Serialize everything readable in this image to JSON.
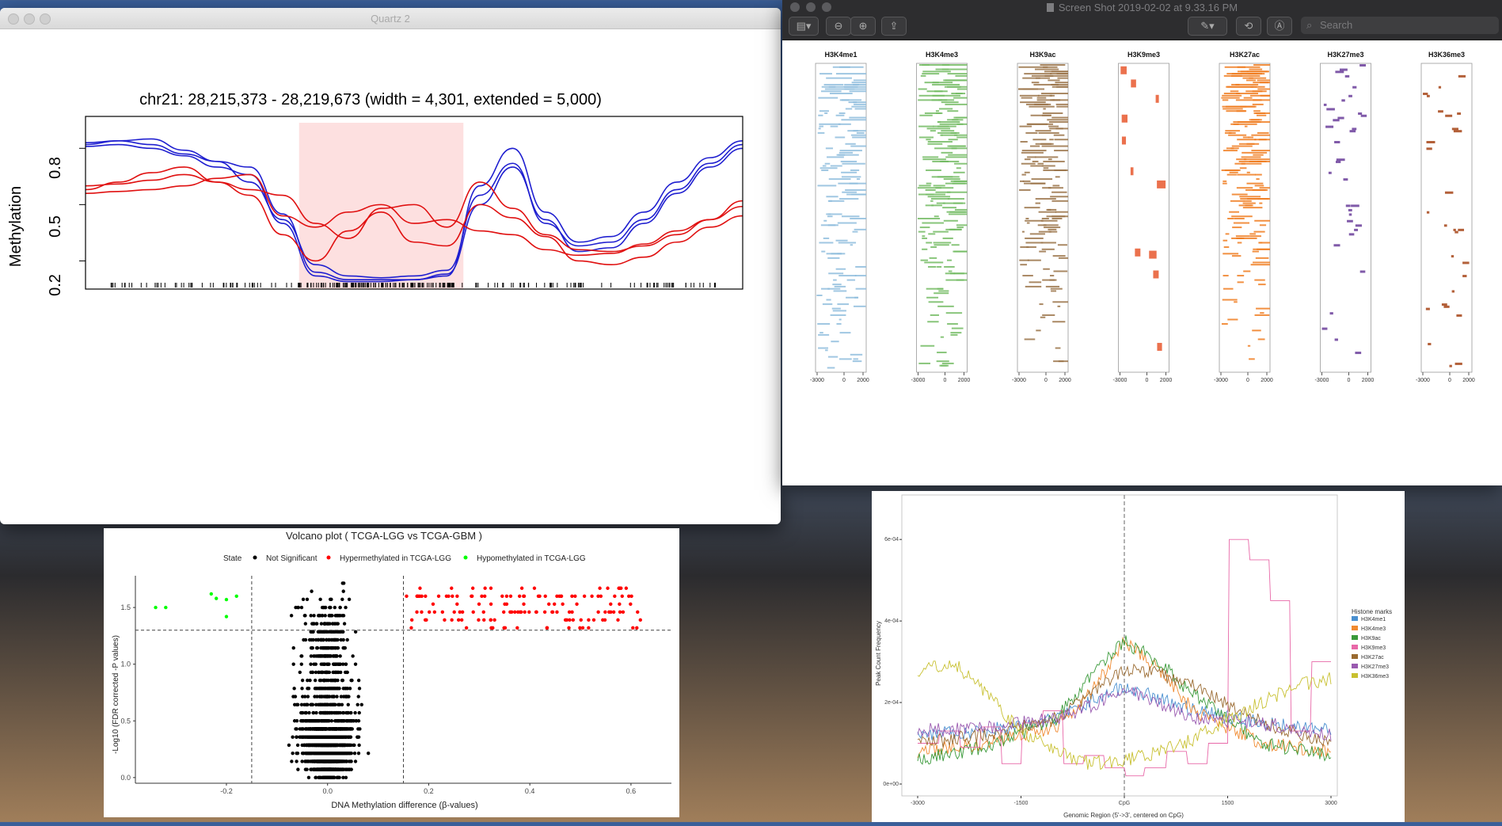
{
  "quartz": {
    "window_title": "Quartz 2",
    "chart_data": {
      "type": "line",
      "title": "chr21: 28,215,373 - 28,219,673 (width = 4,301, extended = 5,000)",
      "ylabel": "Methylation",
      "y_ticks": [
        "0.2",
        "0.5",
        "0.8"
      ],
      "ylim": [
        0.05,
        0.97
      ],
      "highlight_region": [
        0.325,
        0.575
      ],
      "x": [
        0,
        0.05,
        0.1,
        0.15,
        0.2,
        0.25,
        0.3,
        0.35,
        0.4,
        0.45,
        0.5,
        0.55,
        0.6,
        0.65,
        0.7,
        0.75,
        0.8,
        0.85,
        0.9,
        0.95,
        1.0
      ],
      "series": [
        {
          "color": "#1f1fd0",
          "values": [
            0.83,
            0.84,
            0.82,
            0.77,
            0.73,
            0.62,
            0.42,
            0.18,
            0.12,
            0.11,
            0.12,
            0.15,
            0.55,
            0.72,
            0.4,
            0.28,
            0.3,
            0.42,
            0.58,
            0.72,
            0.82
          ]
        },
        {
          "color": "#1f1fd0",
          "values": [
            0.82,
            0.84,
            0.85,
            0.79,
            0.73,
            0.7,
            0.45,
            0.14,
            0.1,
            0.1,
            0.1,
            0.12,
            0.6,
            0.8,
            0.46,
            0.3,
            0.33,
            0.46,
            0.62,
            0.75,
            0.84
          ]
        },
        {
          "color": "#1f1fd0",
          "values": [
            0.81,
            0.82,
            0.8,
            0.76,
            0.7,
            0.66,
            0.4,
            0.12,
            0.09,
            0.09,
            0.1,
            0.13,
            0.5,
            0.7,
            0.42,
            0.25,
            0.27,
            0.4,
            0.56,
            0.7,
            0.8
          ]
        },
        {
          "color": "#e01010",
          "values": [
            0.58,
            0.62,
            0.67,
            0.7,
            0.62,
            0.58,
            0.55,
            0.4,
            0.32,
            0.48,
            0.5,
            0.38,
            0.62,
            0.48,
            0.34,
            0.26,
            0.25,
            0.28,
            0.34,
            0.42,
            0.52
          ]
        },
        {
          "color": "#e01010",
          "values": [
            0.56,
            0.57,
            0.58,
            0.6,
            0.64,
            0.66,
            0.44,
            0.38,
            0.46,
            0.5,
            0.4,
            0.42,
            0.36,
            0.34,
            0.26,
            0.23,
            0.24,
            0.29,
            0.36,
            0.42,
            0.49
          ]
        },
        {
          "color": "#e01010",
          "values": [
            0.6,
            0.61,
            0.63,
            0.66,
            0.62,
            0.55,
            0.34,
            0.2,
            0.36,
            0.46,
            0.3,
            0.28,
            0.5,
            0.43,
            0.33,
            0.2,
            0.18,
            0.22,
            0.3,
            0.38,
            0.44
          ]
        }
      ]
    }
  },
  "preview": {
    "window_title": "Screen Shot 2019-02-02 at 9.33.16 PM",
    "search_placeholder": "Search",
    "heatmaps": {
      "type": "heatmap",
      "x_ticks": [
        "-3000",
        "0",
        "2000"
      ],
      "panels": [
        {
          "title": "H3K4me1",
          "color": "#8fbddd",
          "density": 0.55
        },
        {
          "title": "H3K4me3",
          "color": "#73bb63",
          "density": 0.65
        },
        {
          "title": "H3K9ac",
          "color": "#9a7348",
          "density": 0.62
        },
        {
          "title": "H3K9me3",
          "color": "#e8582e",
          "density": 0.06
        },
        {
          "title": "H3K27ac",
          "color": "#f07c20",
          "density": 0.65
        },
        {
          "title": "H3K27me3",
          "color": "#6a3d9a",
          "density": 0.2
        },
        {
          "title": "H3K36me3",
          "color": "#a64416",
          "density": 0.18
        }
      ]
    }
  },
  "volcano": {
    "chart_data": {
      "type": "scatter",
      "title": "Volcano plot ( TCGA-LGG vs TCGA-GBM )",
      "xlabel": "DNA Methylation difference (β-values)",
      "ylabel": "-Log10 (FDR corrected -P values)",
      "xlim": [
        -0.38,
        0.68
      ],
      "ylim": [
        -0.05,
        1.78
      ],
      "x_ticks": [
        "-0.2",
        "0.0",
        "0.2",
        "0.4",
        "0.6"
      ],
      "y_ticks": [
        "0.0",
        "0.5",
        "1.0",
        "1.5"
      ],
      "thresholds": {
        "x": [
          -0.15,
          0.15
        ],
        "y": 1.3
      },
      "legend": {
        "title": "State",
        "items": [
          {
            "label": "Not Significant",
            "color": "#000000"
          },
          {
            "label": "Hypermethylated in TCGA-LGG",
            "color": "#ff0000"
          },
          {
            "label": "Hypomethylated in TCGA-LGG",
            "color": "#00ff00"
          }
        ]
      },
      "hypo_points": [
        [
          -0.34,
          1.5
        ],
        [
          -0.32,
          1.5
        ],
        [
          -0.23,
          1.62
        ],
        [
          -0.22,
          1.58
        ],
        [
          -0.2,
          1.57
        ],
        [
          -0.18,
          1.6
        ],
        [
          -0.2,
          1.42
        ]
      ]
    }
  },
  "profile": {
    "chart_data": {
      "type": "line",
      "xlabel": "Genomic Region (5'->3', centered on CpG)",
      "ylabel": "Peak Count Frequency",
      "x_ticks": [
        "-3000",
        "-1500",
        "CpG",
        "1500",
        "3000"
      ],
      "x_tick_values": [
        -3000,
        -1500,
        0,
        1500,
        3000
      ],
      "y_ticks": [
        "0e+00",
        "2e-04",
        "4e-04",
        "6e-04"
      ],
      "ylim": [
        0,
        0.00068
      ],
      "legend_title": "Histone marks",
      "series": [
        {
          "name": "H3K4me1",
          "color": "#4a90d0",
          "x": [
            -3000,
            -2000,
            -1000,
            -500,
            0,
            500,
            1000,
            2000,
            3000
          ],
          "values": [
            0.00012,
            0.00013,
            0.00016,
            0.0002,
            0.00024,
            0.00021,
            0.00018,
            0.00015,
            0.00013
          ]
        },
        {
          "name": "H3K4me3",
          "color": "#f08a30",
          "x": [
            -3000,
            -2000,
            -1000,
            -500,
            0,
            500,
            1000,
            2000,
            3000
          ],
          "values": [
            8e-05,
            0.0001,
            0.00014,
            0.00022,
            0.00035,
            0.00028,
            0.00018,
            0.0001,
            8e-05
          ]
        },
        {
          "name": "H3K9ac",
          "color": "#3a9a3a",
          "x": [
            -3000,
            -2000,
            -1000,
            -500,
            0,
            500,
            1000,
            2000,
            3000
          ],
          "values": [
            6e-05,
            9e-05,
            0.00016,
            0.00026,
            0.00035,
            0.0003,
            0.00022,
            0.0001,
            7e-05
          ]
        },
        {
          "name": "H3K9me3",
          "color": "#e868a8",
          "x": [
            -3000,
            -2700,
            -2400,
            -2100,
            -1800,
            -1500,
            -1200,
            -900,
            -600,
            -300,
            0,
            300,
            600,
            900,
            1200,
            1500,
            1800,
            2100,
            2400,
            2700,
            3000
          ],
          "values": [
            0.0001,
            0.00013,
            9e-05,
            0.00014,
            5e-05,
            0.00015,
            0.00018,
            5e-05,
            7e-05,
            4e-05,
            2e-05,
            4e-05,
            8e-05,
            5e-05,
            0.0001,
            0.0006,
            0.00055,
            0.00045,
            0.00013,
            0.0003,
            0.00014
          ]
        },
        {
          "name": "H3K27ac",
          "color": "#9a6a30",
          "x": [
            -3000,
            -2000,
            -1000,
            -500,
            0,
            500,
            1000,
            2000,
            3000
          ],
          "values": [
            0.0001,
            0.00012,
            0.00016,
            0.00022,
            0.00028,
            0.00027,
            0.00024,
            0.00015,
            0.0001
          ]
        },
        {
          "name": "H3K27me3",
          "color": "#9a5ab0",
          "x": [
            -3000,
            -2000,
            -1000,
            -500,
            0,
            500,
            1000,
            2000,
            3000
          ],
          "values": [
            0.00013,
            0.00014,
            0.00016,
            0.00019,
            0.00023,
            0.0002,
            0.00016,
            0.00015,
            0.00012
          ]
        },
        {
          "name": "H3K36me3",
          "color": "#c8c030",
          "x": [
            -3000,
            -2500,
            -2000,
            -1500,
            -1000,
            -500,
            0,
            500,
            1000,
            1500,
            2000,
            2500,
            3000
          ],
          "values": [
            0.00028,
            0.0003,
            0.00022,
            0.00013,
            8e-05,
            5e-05,
            6e-05,
            8e-05,
            0.00011,
            0.00016,
            0.0002,
            0.00024,
            0.00026
          ]
        }
      ]
    }
  }
}
